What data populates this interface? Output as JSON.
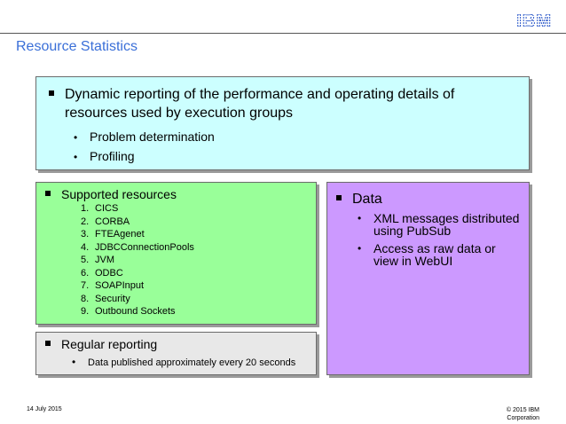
{
  "header": {
    "logo": "IBM",
    "title": "Resource Statistics"
  },
  "top_box": {
    "bullet": "Dynamic reporting of the performance and operating details of resources used by execution groups",
    "sub": [
      "Problem determination",
      "Profiling"
    ]
  },
  "resources_box": {
    "heading": "Supported resources",
    "items": [
      "CICS",
      "CORBA",
      "FTEAgenet",
      "JDBCConnectionPools",
      "JVM",
      "ODBC",
      "SOAPInput",
      "Security",
      "Outbound Sockets"
    ]
  },
  "data_box": {
    "heading": "Data",
    "sub": [
      "XML messages distributed using PubSub",
      "Access as raw data or view in WebUI"
    ]
  },
  "reporting_box": {
    "heading": "Regular reporting",
    "sub": [
      "Data published approximately every 20 seconds"
    ]
  },
  "footer": {
    "date": "14 July 2015",
    "copyright_line1": "© 2015 IBM",
    "copyright_line2": "Corporation"
  },
  "colors": {
    "title": "#3a6fd8",
    "box_top": "#ccffff",
    "box_resources": "#99ff99",
    "box_data": "#cc99ff",
    "box_reporting": "#e8e8e8"
  }
}
